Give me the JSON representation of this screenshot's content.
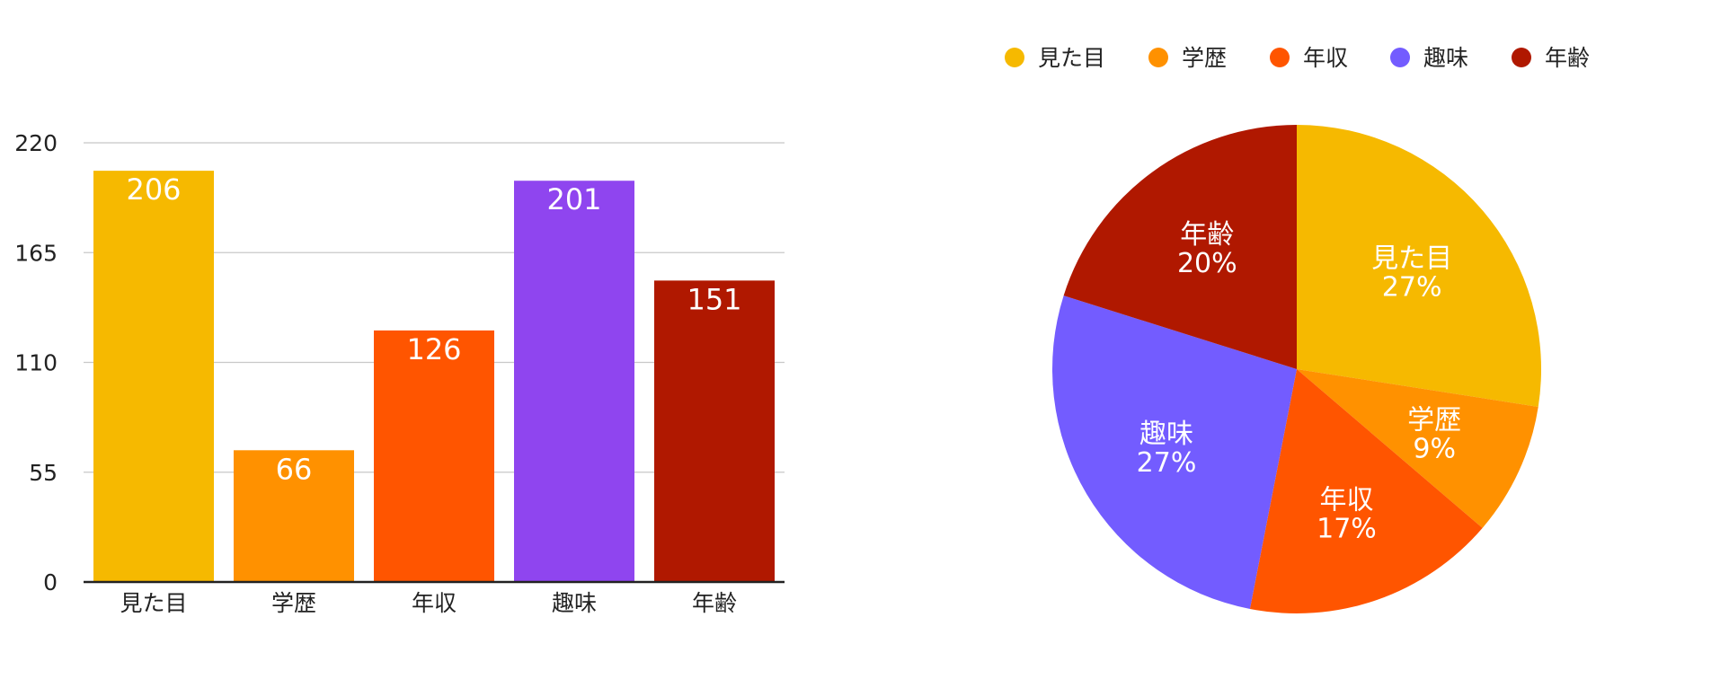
{
  "chart_data": [
    {
      "type": "bar",
      "categories": [
        "見た目",
        "学歴",
        "年収",
        "趣味",
        "年齢"
      ],
      "values": [
        206,
        66,
        126,
        201,
        151
      ],
      "colors": [
        "#f6b900",
        "#ff9100",
        "#ff5500",
        "#8f45ef",
        "#b01800"
      ],
      "ylim": [
        0,
        220
      ],
      "yticks": [
        "0",
        "55",
        "110",
        "165",
        "220"
      ],
      "data_labels": [
        "206",
        "66",
        "126",
        "201",
        "151"
      ],
      "grid": true,
      "title": "",
      "xlabel": "",
      "ylabel": ""
    },
    {
      "type": "pie",
      "categories": [
        "見た目",
        "学歴",
        "年収",
        "趣味",
        "年齢"
      ],
      "values": [
        206,
        66,
        126,
        201,
        151
      ],
      "percent_labels": [
        "27%",
        "9%",
        "17%",
        "27%",
        "20%"
      ],
      "colors": [
        "#f6b900",
        "#ff9100",
        "#ff5500",
        "#735cff",
        "#b01800"
      ],
      "legend_position": "top",
      "title": ""
    }
  ]
}
